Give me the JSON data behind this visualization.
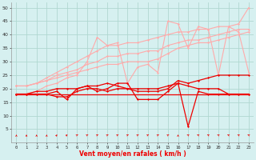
{
  "title": "",
  "xlabel": "Vent moyen/en rafales ( km/h )",
  "ylabel": "",
  "bg_color": "#d6f0f0",
  "grid_color": "#b0d8d0",
  "x": [
    0,
    1,
    2,
    3,
    4,
    5,
    6,
    7,
    8,
    9,
    10,
    11,
    12,
    13,
    14,
    15,
    16,
    17,
    18,
    19,
    20,
    21,
    22,
    23
  ],
  "line1": [
    21,
    21,
    22,
    24,
    26,
    28,
    30,
    32,
    34,
    36,
    36,
    37,
    37,
    38,
    39,
    40,
    41,
    41,
    42,
    42,
    43,
    43,
    44,
    50
  ],
  "line2": [
    21,
    21,
    22,
    23,
    25,
    26,
    27,
    29,
    30,
    32,
    32,
    33,
    33,
    34,
    34,
    36,
    37,
    38,
    38,
    39,
    40,
    41,
    42,
    42
  ],
  "line3": [
    21,
    21,
    22,
    23,
    24,
    25,
    26,
    27,
    28,
    29,
    29,
    30,
    30,
    30,
    31,
    33,
    35,
    36,
    37,
    37,
    38,
    39,
    40,
    41
  ],
  "line4": [
    18,
    18,
    19,
    21,
    22,
    24,
    25,
    30,
    39,
    36,
    37,
    22,
    28,
    29,
    26,
    45,
    44,
    35,
    43,
    42,
    25,
    43,
    41,
    26
  ],
  "line5": [
    18,
    18,
    19,
    19,
    20,
    20,
    20,
    21,
    21,
    22,
    21,
    20,
    19,
    19,
    19,
    20,
    23,
    22,
    23,
    24,
    25,
    25,
    25,
    25
  ],
  "line6": [
    18,
    18,
    18,
    18,
    19,
    16,
    20,
    21,
    19,
    20,
    22,
    22,
    16,
    16,
    16,
    19,
    22,
    6,
    19,
    18,
    18,
    18,
    18,
    18
  ],
  "line7": [
    18,
    18,
    18,
    18,
    18,
    18,
    18,
    18,
    18,
    18,
    18,
    18,
    18,
    18,
    18,
    18,
    18,
    18,
    18,
    18,
    18,
    18,
    18,
    18
  ],
  "line8": [
    18,
    18,
    18,
    18,
    17,
    17,
    19,
    20,
    20,
    19,
    20,
    20,
    20,
    20,
    20,
    21,
    22,
    21,
    20,
    20,
    20,
    18,
    18,
    18
  ],
  "color_light": "#ffaaaa",
  "color_dark": "#ee0000",
  "ylim": [
    0,
    52
  ],
  "yticks": [
    5,
    10,
    15,
    20,
    25,
    30,
    35,
    40,
    45,
    50
  ],
  "xticks": [
    0,
    1,
    2,
    3,
    4,
    5,
    6,
    7,
    8,
    9,
    10,
    11,
    12,
    13,
    14,
    15,
    16,
    17,
    18,
    19,
    20,
    21,
    22,
    23
  ],
  "arrow_angles": [
    0,
    0,
    0,
    0,
    20,
    30,
    45,
    45,
    45,
    45,
    45,
    45,
    45,
    45,
    45,
    45,
    0,
    315,
    315,
    315,
    315,
    315,
    315,
    315
  ]
}
